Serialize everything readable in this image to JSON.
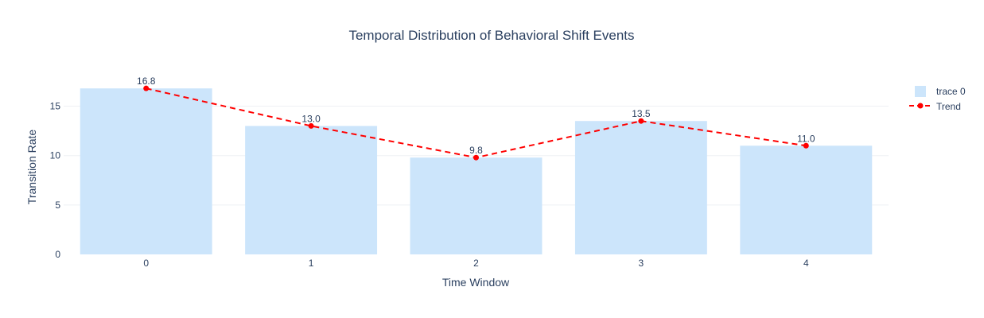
{
  "chart_data": {
    "type": "bar",
    "title": "Temporal Distribution of Behavioral Shift Events",
    "xlabel": "Time Window",
    "ylabel": "Transition Rate",
    "categories": [
      "0",
      "1",
      "2",
      "3",
      "4"
    ],
    "series": [
      {
        "name": "trace 0",
        "type": "bar",
        "values": [
          16.8,
          13.0,
          9.8,
          13.5,
          11.0
        ],
        "color": "#cce5fb"
      },
      {
        "name": "Trend",
        "type": "line",
        "values": [
          16.8,
          13.0,
          9.8,
          13.5,
          11.0
        ],
        "color": "#ff0000",
        "dash": "dashed",
        "markers": true
      }
    ],
    "data_labels": [
      "16.8",
      "13.0",
      "9.8",
      "13.5",
      "11.0"
    ],
    "y_ticks": [
      0,
      5,
      10,
      15
    ],
    "ylim": [
      0,
      17.7
    ],
    "grid": true,
    "legend_position": "top-right"
  }
}
